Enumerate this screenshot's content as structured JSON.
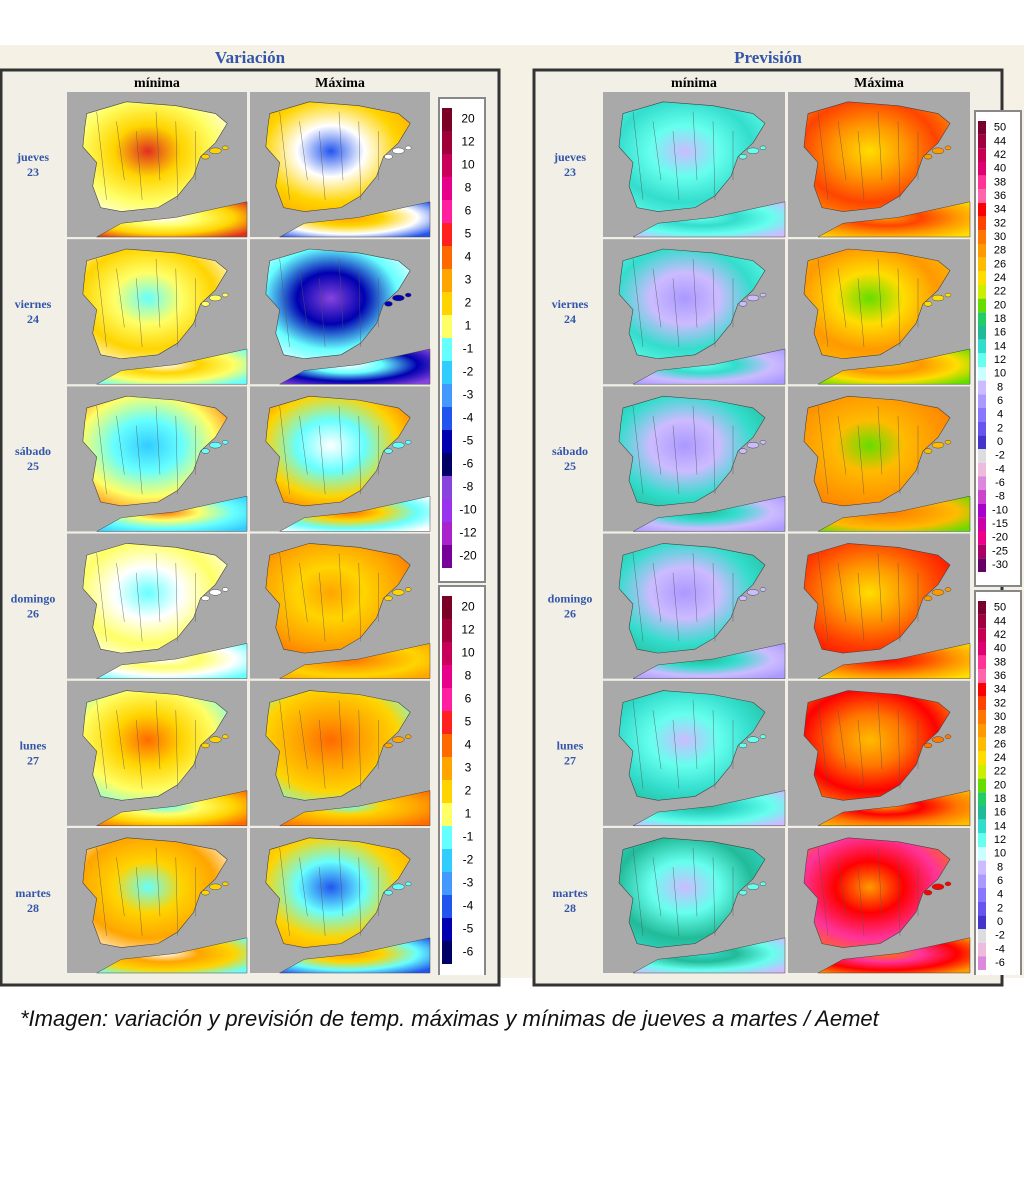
{
  "panels": [
    {
      "title": "Variación",
      "columns": [
        "mínima",
        "Máxima"
      ],
      "rows": [
        {
          "day": "jueves",
          "date": "23"
        },
        {
          "day": "viernes",
          "date": "24"
        },
        {
          "day": "sábado",
          "date": "25"
        },
        {
          "day": "domingo",
          "date": "26"
        },
        {
          "day": "lunes",
          "date": "27"
        },
        {
          "day": "martes",
          "date": "28"
        }
      ],
      "legends": [
        [
          {
            "label": "20",
            "color": "#7a0026"
          },
          {
            "label": "12",
            "color": "#a0003a"
          },
          {
            "label": "10",
            "color": "#c8005a"
          },
          {
            "label": "8",
            "color": "#e8008a"
          },
          {
            "label": "6",
            "color": "#ff1fa0"
          },
          {
            "label": "5",
            "color": "#ff2020"
          },
          {
            "label": "4",
            "color": "#ff6a00"
          },
          {
            "label": "3",
            "color": "#ffa500"
          },
          {
            "label": "2",
            "color": "#ffd400"
          },
          {
            "label": "1",
            "color": "#ffff66"
          },
          {
            "label": "-1",
            "color": "#66ffff"
          },
          {
            "label": "-2",
            "color": "#33ccff"
          },
          {
            "label": "-3",
            "color": "#4499ff"
          },
          {
            "label": "-4",
            "color": "#2255ee"
          },
          {
            "label": "-5",
            "color": "#0000b0"
          },
          {
            "label": "-6",
            "color": "#000066"
          },
          {
            "label": "-8",
            "color": "#8844dd"
          },
          {
            "label": "-10",
            "color": "#9933ee"
          },
          {
            "label": "-12",
            "color": "#aa22cc"
          },
          {
            "label": "-20",
            "color": "#770099"
          }
        ],
        [
          {
            "label": "20",
            "color": "#7a0026"
          },
          {
            "label": "12",
            "color": "#a0003a"
          },
          {
            "label": "10",
            "color": "#c8005a"
          },
          {
            "label": "8",
            "color": "#e8008a"
          },
          {
            "label": "6",
            "color": "#ff1fa0"
          },
          {
            "label": "5",
            "color": "#ff2020"
          },
          {
            "label": "4",
            "color": "#ff6a00"
          },
          {
            "label": "3",
            "color": "#ffa500"
          },
          {
            "label": "2",
            "color": "#ffd400"
          },
          {
            "label": "1",
            "color": "#ffff66"
          },
          {
            "label": "-1",
            "color": "#66ffff"
          },
          {
            "label": "-2",
            "color": "#33ccff"
          },
          {
            "label": "-3",
            "color": "#4499ff"
          },
          {
            "label": "-4",
            "color": "#2255ee"
          },
          {
            "label": "-5",
            "color": "#0000b0"
          },
          {
            "label": "-6",
            "color": "#000066"
          }
        ]
      ]
    },
    {
      "title": "Previsión",
      "columns": [
        "mínima",
        "Máxima"
      ],
      "rows": [
        {
          "day": "jueves",
          "date": "23"
        },
        {
          "day": "viernes",
          "date": "24"
        },
        {
          "day": "sábado",
          "date": "25"
        },
        {
          "day": "domingo",
          "date": "26"
        },
        {
          "day": "lunes",
          "date": "27"
        },
        {
          "day": "martes",
          "date": "28"
        }
      ],
      "legends": [
        [
          {
            "label": "50",
            "color": "#7a0030"
          },
          {
            "label": "44",
            "color": "#a00040"
          },
          {
            "label": "42",
            "color": "#c80050"
          },
          {
            "label": "40",
            "color": "#e00070"
          },
          {
            "label": "38",
            "color": "#ff3399"
          },
          {
            "label": "36",
            "color": "#ff66aa"
          },
          {
            "label": "34",
            "color": "#ff0000"
          },
          {
            "label": "32",
            "color": "#ff4400"
          },
          {
            "label": "30",
            "color": "#ff7700"
          },
          {
            "label": "28",
            "color": "#ff9900"
          },
          {
            "label": "26",
            "color": "#ffbb00"
          },
          {
            "label": "24",
            "color": "#ffdd00"
          },
          {
            "label": "22",
            "color": "#ccee00"
          },
          {
            "label": "20",
            "color": "#66dd00"
          },
          {
            "label": "18",
            "color": "#22cc66"
          },
          {
            "label": "16",
            "color": "#22bb99"
          },
          {
            "label": "14",
            "color": "#33ddcc"
          },
          {
            "label": "12",
            "color": "#66ffee"
          },
          {
            "label": "10",
            "color": "#ccffff"
          },
          {
            "label": "8",
            "color": "#ccbbff"
          },
          {
            "label": "6",
            "color": "#aa99ff"
          },
          {
            "label": "4",
            "color": "#8877ff"
          },
          {
            "label": "2",
            "color": "#6655ee"
          },
          {
            "label": "0",
            "color": "#4433cc"
          },
          {
            "label": "-2",
            "color": "#dddddd"
          },
          {
            "label": "-4",
            "color": "#eebbdd"
          },
          {
            "label": "-6",
            "color": "#dd88dd"
          },
          {
            "label": "-8",
            "color": "#cc44cc"
          },
          {
            "label": "-10",
            "color": "#aa00cc"
          },
          {
            "label": "-15",
            "color": "#cc00aa"
          },
          {
            "label": "-20",
            "color": "#ee0088"
          },
          {
            "label": "-25",
            "color": "#aa0066"
          },
          {
            "label": "-30",
            "color": "#660066"
          }
        ],
        [
          {
            "label": "50",
            "color": "#7a0030"
          },
          {
            "label": "44",
            "color": "#a00040"
          },
          {
            "label": "42",
            "color": "#c80050"
          },
          {
            "label": "40",
            "color": "#e00070"
          },
          {
            "label": "38",
            "color": "#ff3399"
          },
          {
            "label": "36",
            "color": "#ff66aa"
          },
          {
            "label": "34",
            "color": "#ff0000"
          },
          {
            "label": "32",
            "color": "#ff4400"
          },
          {
            "label": "30",
            "color": "#ff7700"
          },
          {
            "label": "28",
            "color": "#ff9900"
          },
          {
            "label": "26",
            "color": "#ffbb00"
          },
          {
            "label": "24",
            "color": "#ffdd00"
          },
          {
            "label": "22",
            "color": "#ccee00"
          },
          {
            "label": "20",
            "color": "#66dd00"
          },
          {
            "label": "18",
            "color": "#22cc66"
          },
          {
            "label": "16",
            "color": "#22bb99"
          },
          {
            "label": "14",
            "color": "#33ddcc"
          },
          {
            "label": "12",
            "color": "#66ffee"
          },
          {
            "label": "10",
            "color": "#ccffff"
          },
          {
            "label": "8",
            "color": "#ccbbff"
          },
          {
            "label": "6",
            "color": "#aa99ff"
          },
          {
            "label": "4",
            "color": "#8877ff"
          },
          {
            "label": "2",
            "color": "#6655ee"
          },
          {
            "label": "0",
            "color": "#4433cc"
          },
          {
            "label": "-2",
            "color": "#dddddd"
          },
          {
            "label": "-4",
            "color": "#eebbdd"
          },
          {
            "label": "-6",
            "color": "#dd88dd"
          }
        ]
      ]
    }
  ],
  "caption": "*Imagen: variación y previsión de temp. máximas y mínimas de jueves a martes / Aemet"
}
